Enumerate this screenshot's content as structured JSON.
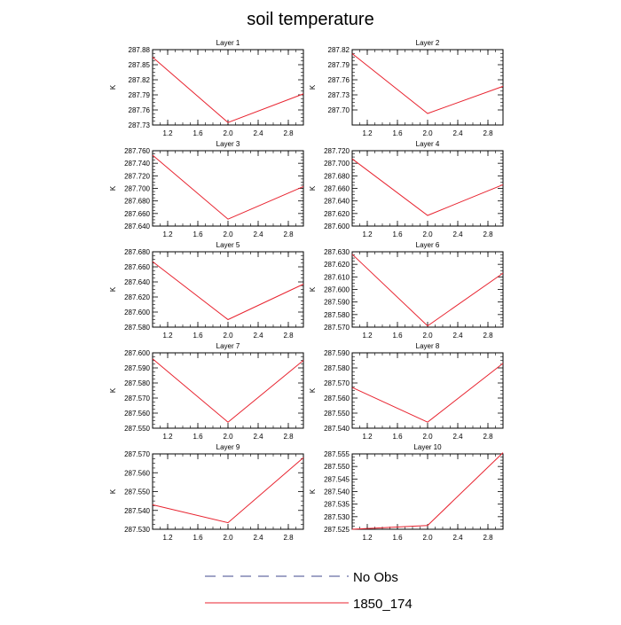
{
  "title": "soil temperature",
  "legend": {
    "placement": "bottom-center",
    "entries": [
      {
        "label": "No Obs",
        "color": "#404a8c",
        "dash": true
      },
      {
        "label": "1850_174",
        "color": "#e8232f",
        "dash": false
      }
    ]
  },
  "chart_data": [
    {
      "type": "line",
      "title": "Layer 1",
      "ylabel": "K",
      "x": [
        1,
        2,
        3
      ],
      "xlim": [
        1,
        3
      ],
      "xticks": [
        "1.2",
        "1.6",
        "2.0",
        "2.4",
        "2.8"
      ],
      "ylim": [
        287.73,
        287.88
      ],
      "yticks": [
        "287.73",
        "287.76",
        "287.79",
        "287.82",
        "287.85",
        "287.88"
      ],
      "series": [
        {
          "name": "1850_174",
          "values": [
            287.865,
            287.735,
            287.792
          ]
        }
      ]
    },
    {
      "type": "line",
      "title": "Layer 2",
      "ylabel": "K",
      "x": [
        1,
        2,
        3
      ],
      "xlim": [
        1,
        3
      ],
      "xticks": [
        "1.2",
        "1.6",
        "2.0",
        "2.4",
        "2.8"
      ],
      "ylim": [
        287.67,
        287.82
      ],
      "yticks": [
        "287.70",
        "287.73",
        "287.76",
        "287.79",
        "287.82"
      ],
      "series": [
        {
          "name": "1850_174",
          "values": [
            287.812,
            287.693,
            287.747
          ]
        }
      ]
    },
    {
      "type": "line",
      "title": "Layer 3",
      "ylabel": "K",
      "x": [
        1,
        2,
        3
      ],
      "xlim": [
        1,
        3
      ],
      "xticks": [
        "1.2",
        "1.6",
        "2.0",
        "2.4",
        "2.8"
      ],
      "ylim": [
        287.64,
        287.76
      ],
      "yticks": [
        "287.640",
        "287.660",
        "287.680",
        "287.700",
        "287.720",
        "287.740",
        "287.760"
      ],
      "series": [
        {
          "name": "1850_174",
          "values": [
            287.753,
            287.651,
            287.703
          ]
        }
      ]
    },
    {
      "type": "line",
      "title": "Layer 4",
      "ylabel": "K",
      "x": [
        1,
        2,
        3
      ],
      "xlim": [
        1,
        3
      ],
      "xticks": [
        "1.2",
        "1.6",
        "2.0",
        "2.4",
        "2.8"
      ],
      "ylim": [
        287.6,
        287.72
      ],
      "yticks": [
        "287.600",
        "287.620",
        "287.640",
        "287.660",
        "287.680",
        "287.700",
        "287.720"
      ],
      "series": [
        {
          "name": "1850_174",
          "values": [
            287.707,
            287.617,
            287.666
          ]
        }
      ]
    },
    {
      "type": "line",
      "title": "Layer 5",
      "ylabel": "K",
      "x": [
        1,
        2,
        3
      ],
      "xlim": [
        1,
        3
      ],
      "xticks": [
        "1.2",
        "1.6",
        "2.0",
        "2.4",
        "2.8"
      ],
      "ylim": [
        287.58,
        287.68
      ],
      "yticks": [
        "287.580",
        "287.600",
        "287.620",
        "287.640",
        "287.660",
        "287.680"
      ],
      "series": [
        {
          "name": "1850_174",
          "values": [
            287.667,
            287.59,
            287.637
          ]
        }
      ]
    },
    {
      "type": "line",
      "title": "Layer 6",
      "ylabel": "K",
      "x": [
        1,
        2,
        3
      ],
      "xlim": [
        1,
        3
      ],
      "xticks": [
        "1.2",
        "1.6",
        "2.0",
        "2.4",
        "2.8"
      ],
      "ylim": [
        287.57,
        287.63
      ],
      "yticks": [
        "287.570",
        "287.580",
        "287.590",
        "287.600",
        "287.610",
        "287.620",
        "287.630"
      ],
      "series": [
        {
          "name": "1850_174",
          "values": [
            287.628,
            287.571,
            287.613
          ]
        }
      ]
    },
    {
      "type": "line",
      "title": "Layer 7",
      "ylabel": "K",
      "x": [
        1,
        2,
        3
      ],
      "xlim": [
        1,
        3
      ],
      "xticks": [
        "1.2",
        "1.6",
        "2.0",
        "2.4",
        "2.8"
      ],
      "ylim": [
        287.55,
        287.6
      ],
      "yticks": [
        "287.550",
        "287.560",
        "287.570",
        "287.580",
        "287.590",
        "287.600"
      ],
      "series": [
        {
          "name": "1850_174",
          "values": [
            287.596,
            287.554,
            287.595
          ]
        }
      ]
    },
    {
      "type": "line",
      "title": "Layer 8",
      "ylabel": "K",
      "x": [
        1,
        2,
        3
      ],
      "xlim": [
        1,
        3
      ],
      "xticks": [
        "1.2",
        "1.6",
        "2.0",
        "2.4",
        "2.8"
      ],
      "ylim": [
        287.54,
        287.59
      ],
      "yticks": [
        "287.540",
        "287.550",
        "287.560",
        "287.570",
        "287.580",
        "287.590"
      ],
      "series": [
        {
          "name": "1850_174",
          "values": [
            287.567,
            287.544,
            287.583
          ]
        }
      ]
    },
    {
      "type": "line",
      "title": "Layer 9",
      "ylabel": "K",
      "x": [
        1,
        2,
        3
      ],
      "xlim": [
        1,
        3
      ],
      "xticks": [
        "1.2",
        "1.6",
        "2.0",
        "2.4",
        "2.8"
      ],
      "ylim": [
        287.53,
        287.57
      ],
      "yticks": [
        "287.530",
        "287.540",
        "287.550",
        "287.560",
        "287.570"
      ],
      "series": [
        {
          "name": "1850_174",
          "values": [
            287.543,
            287.5335,
            287.568
          ]
        }
      ]
    },
    {
      "type": "line",
      "title": "Layer 10",
      "ylabel": "K",
      "x": [
        1,
        2,
        3
      ],
      "xlim": [
        1,
        3
      ],
      "xticks": [
        "1.2",
        "1.6",
        "2.0",
        "2.4",
        "2.8"
      ],
      "ylim": [
        287.525,
        287.555
      ],
      "yticks": [
        "287.525",
        "287.530",
        "287.535",
        "287.540",
        "287.545",
        "287.550",
        "287.555"
      ],
      "series": [
        {
          "name": "1850_174",
          "values": [
            287.525,
            287.5265,
            287.5555
          ]
        }
      ]
    }
  ]
}
